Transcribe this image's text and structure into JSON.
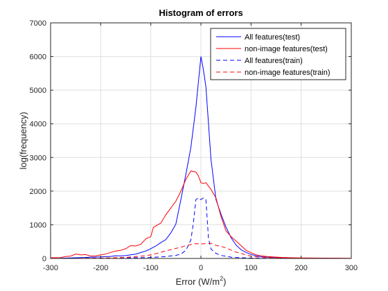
{
  "chart_data": {
    "type": "line",
    "title": "Histogram of errors",
    "xlabel": "Error (W/m",
    "xlabel_sup": "2",
    "xlabel_close": ")",
    "ylabel": "log(frequency)",
    "xlim": [
      -300,
      300
    ],
    "ylim": [
      0,
      7000
    ],
    "xticks": [
      -300,
      -200,
      -100,
      0,
      100,
      200,
      300
    ],
    "yticks": [
      0,
      1000,
      2000,
      3000,
      4000,
      5000,
      6000,
      7000
    ],
    "grid": true,
    "legend_position": "top-right",
    "series": [
      {
        "name": "All features(test)",
        "color": "#0000ff",
        "dash": "solid",
        "points": [
          [
            -300,
            0
          ],
          [
            -280,
            5
          ],
          [
            -260,
            15
          ],
          [
            -240,
            25
          ],
          [
            -220,
            35
          ],
          [
            -200,
            45
          ],
          [
            -180,
            60
          ],
          [
            -170,
            80
          ],
          [
            -160,
            75
          ],
          [
            -150,
            85
          ],
          [
            -140,
            110
          ],
          [
            -130,
            130
          ],
          [
            -120,
            175
          ],
          [
            -110,
            220
          ],
          [
            -100,
            290
          ],
          [
            -90,
            370
          ],
          [
            -80,
            470
          ],
          [
            -70,
            560
          ],
          [
            -60,
            760
          ],
          [
            -50,
            1020
          ],
          [
            -40,
            1750
          ],
          [
            -30,
            2500
          ],
          [
            -20,
            3300
          ],
          [
            -10,
            4500
          ],
          [
            0,
            6000
          ],
          [
            5,
            5600
          ],
          [
            10,
            5100
          ],
          [
            20,
            2950
          ],
          [
            30,
            1750
          ],
          [
            40,
            1320
          ],
          [
            50,
            930
          ],
          [
            60,
            620
          ],
          [
            70,
            400
          ],
          [
            80,
            260
          ],
          [
            90,
            180
          ],
          [
            100,
            120
          ],
          [
            110,
            80
          ],
          [
            120,
            50
          ],
          [
            140,
            30
          ],
          [
            160,
            20
          ],
          [
            180,
            12
          ],
          [
            200,
            8
          ],
          [
            240,
            5
          ],
          [
            280,
            3
          ]
        ]
      },
      {
        "name": "non-image features(test)",
        "color": "#ff0000",
        "dash": "solid",
        "points": [
          [
            -300,
            20
          ],
          [
            -280,
            25
          ],
          [
            -270,
            55
          ],
          [
            -260,
            70
          ],
          [
            -250,
            130
          ],
          [
            -240,
            105
          ],
          [
            -230,
            115
          ],
          [
            -220,
            70
          ],
          [
            -210,
            75
          ],
          [
            -200,
            105
          ],
          [
            -190,
            130
          ],
          [
            -180,
            180
          ],
          [
            -170,
            220
          ],
          [
            -160,
            240
          ],
          [
            -150,
            290
          ],
          [
            -140,
            380
          ],
          [
            -130,
            370
          ],
          [
            -120,
            420
          ],
          [
            -110,
            580
          ],
          [
            -100,
            650
          ],
          [
            -95,
            920
          ],
          [
            -90,
            970
          ],
          [
            -80,
            1050
          ],
          [
            -70,
            1300
          ],
          [
            -60,
            1500
          ],
          [
            -50,
            1700
          ],
          [
            -40,
            2000
          ],
          [
            -30,
            2350
          ],
          [
            -20,
            2600
          ],
          [
            -10,
            2570
          ],
          [
            -5,
            2450
          ],
          [
            0,
            2250
          ],
          [
            5,
            2230
          ],
          [
            10,
            2250
          ],
          [
            20,
            2050
          ],
          [
            30,
            1800
          ],
          [
            40,
            1250
          ],
          [
            50,
            820
          ],
          [
            60,
            650
          ],
          [
            70,
            520
          ],
          [
            80,
            380
          ],
          [
            90,
            240
          ],
          [
            100,
            170
          ],
          [
            110,
            110
          ],
          [
            120,
            80
          ],
          [
            130,
            60
          ],
          [
            140,
            50
          ],
          [
            160,
            30
          ],
          [
            180,
            20
          ],
          [
            200,
            15
          ],
          [
            240,
            10
          ],
          [
            280,
            8
          ],
          [
            300,
            5
          ]
        ]
      },
      {
        "name": "All features(train)",
        "color": "#0000ff",
        "dash": "dashed",
        "points": [
          [
            -300,
            0
          ],
          [
            -250,
            3
          ],
          [
            -200,
            8
          ],
          [
            -150,
            15
          ],
          [
            -100,
            30
          ],
          [
            -70,
            55
          ],
          [
            -50,
            90
          ],
          [
            -40,
            130
          ],
          [
            -30,
            240
          ],
          [
            -20,
            550
          ],
          [
            -15,
            1050
          ],
          [
            -10,
            1750
          ],
          [
            -5,
            1800
          ],
          [
            0,
            1750
          ],
          [
            5,
            1800
          ],
          [
            10,
            1750
          ],
          [
            15,
            600
          ],
          [
            20,
            280
          ],
          [
            30,
            150
          ],
          [
            40,
            90
          ],
          [
            60,
            40
          ],
          [
            80,
            20
          ],
          [
            100,
            10
          ],
          [
            150,
            5
          ],
          [
            200,
            3
          ],
          [
            250,
            2
          ],
          [
            300,
            0
          ]
        ]
      },
      {
        "name": "non-image features(train)",
        "color": "#ff0000",
        "dash": "dashed",
        "points": [
          [
            -300,
            0
          ],
          [
            -250,
            3
          ],
          [
            -200,
            10
          ],
          [
            -170,
            20
          ],
          [
            -150,
            30
          ],
          [
            -130,
            55
          ],
          [
            -110,
            80
          ],
          [
            -100,
            110
          ],
          [
            -90,
            140
          ],
          [
            -80,
            180
          ],
          [
            -70,
            230
          ],
          [
            -60,
            260
          ],
          [
            -50,
            300
          ],
          [
            -40,
            330
          ],
          [
            -30,
            380
          ],
          [
            -20,
            410
          ],
          [
            -10,
            440
          ],
          [
            0,
            430
          ],
          [
            10,
            440
          ],
          [
            20,
            450
          ],
          [
            30,
            390
          ],
          [
            40,
            360
          ],
          [
            50,
            310
          ],
          [
            60,
            250
          ],
          [
            70,
            190
          ],
          [
            80,
            150
          ],
          [
            90,
            100
          ],
          [
            100,
            70
          ],
          [
            110,
            50
          ],
          [
            130,
            30
          ],
          [
            150,
            20
          ],
          [
            200,
            8
          ],
          [
            250,
            3
          ],
          [
            300,
            0
          ]
        ]
      }
    ]
  }
}
